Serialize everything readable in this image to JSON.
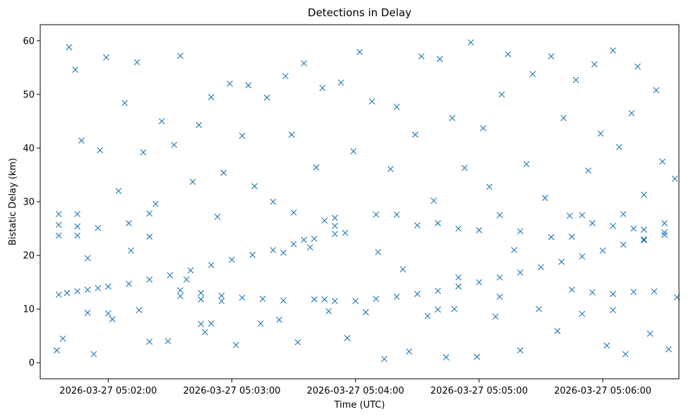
{
  "chart_data": {
    "type": "scatter",
    "title": "Detections in Delay",
    "xlabel": "Time (UTC)",
    "ylabel": "Bistatic Delay (km)",
    "marker": "x",
    "color": "#1f77b4",
    "grid": false,
    "legend": "none",
    "xlim": [
      "2026-03-27 05:01:27",
      "2026-03-27 05:06:37"
    ],
    "ylim": [
      -3,
      63
    ],
    "x_ticks": [
      "2026-03-27 05:02:00",
      "2026-03-27 05:03:00",
      "2026-03-27 05:04:00",
      "2026-03-27 05:05:00",
      "2026-03-27 05:06:00"
    ],
    "y_ticks": [
      0,
      10,
      20,
      30,
      40,
      50,
      60
    ],
    "series": [
      {
        "description": "dense detections forming curved tracks (approx. 1 s sampling)",
        "points": [
          [
            "2026-03-27 05:01:36",
            12.7
          ],
          [
            "2026-03-27 05:01:40",
            13.0
          ],
          [
            "2026-03-27 05:01:45",
            13.3
          ],
          [
            "2026-03-27 05:01:50",
            13.6
          ],
          [
            "2026-03-27 05:01:55",
            13.9
          ],
          [
            "2026-03-27 05:02:00",
            14.2
          ],
          [
            "2026-03-27 05:02:10",
            14.7
          ],
          [
            "2026-03-27 05:02:20",
            15.5
          ],
          [
            "2026-03-27 05:02:30",
            16.3
          ],
          [
            "2026-03-27 05:02:40",
            17.2
          ],
          [
            "2026-03-27 05:02:50",
            18.2
          ],
          [
            "2026-03-27 05:03:00",
            19.2
          ],
          [
            "2026-03-27 05:03:10",
            20.1
          ],
          [
            "2026-03-27 05:03:20",
            21.0
          ],
          [
            "2026-03-27 05:03:30",
            22.1
          ],
          [
            "2026-03-27 05:03:40",
            23.1
          ],
          [
            "2026-03-27 05:03:50",
            24.0
          ],
          [
            "2026-03-27 05:03:55",
            24.2
          ],
          [
            "2026-03-27 05:03:25",
            20.5
          ],
          [
            "2026-03-27 05:03:35",
            22.9
          ],
          [
            "2026-03-27 05:02:35",
            13.5
          ],
          [
            "2026-03-27 05:02:45",
            13.0
          ],
          [
            "2026-03-27 05:02:55",
            12.5
          ],
          [
            "2026-03-27 05:03:05",
            12.1
          ],
          [
            "2026-03-27 05:03:15",
            11.9
          ],
          [
            "2026-03-27 05:03:25",
            11.6
          ],
          [
            "2026-03-27 05:02:35",
            12.4
          ],
          [
            "2026-03-27 05:02:45",
            11.8
          ],
          [
            "2026-03-27 05:02:55",
            11.5
          ],
          [
            "2026-03-27 05:03:40",
            11.8
          ],
          [
            "2026-03-27 05:03:45",
            11.8
          ],
          [
            "2026-03-27 05:03:50",
            11.5
          ],
          [
            "2026-03-27 05:04:00",
            11.5
          ],
          [
            "2026-03-27 05:04:10",
            11.9
          ],
          [
            "2026-03-27 05:04:20",
            12.3
          ],
          [
            "2026-03-27 05:04:30",
            12.8
          ],
          [
            "2026-03-27 05:04:40",
            13.4
          ],
          [
            "2026-03-27 05:04:50",
            14.2
          ],
          [
            "2026-03-27 05:05:00",
            15.0
          ],
          [
            "2026-03-27 05:05:10",
            15.9
          ],
          [
            "2026-03-27 05:05:20",
            16.8
          ],
          [
            "2026-03-27 05:05:30",
            17.8
          ],
          [
            "2026-03-27 05:05:40",
            18.8
          ],
          [
            "2026-03-27 05:05:50",
            19.8
          ],
          [
            "2026-03-27 05:06:00",
            20.9
          ],
          [
            "2026-03-27 05:06:10",
            22.0
          ],
          [
            "2026-03-27 05:06:20",
            22.8
          ],
          [
            "2026-03-27 05:06:30",
            23.8
          ],
          [
            "2026-03-27 05:05:45",
            13.6
          ],
          [
            "2026-03-27 05:05:55",
            13.1
          ],
          [
            "2026-03-27 05:06:05",
            12.8
          ],
          [
            "2026-03-27 05:06:15",
            13.2
          ],
          [
            "2026-03-27 05:06:25",
            13.3
          ],
          [
            "2026-03-27 05:01:36",
            25.7
          ],
          [
            "2026-03-27 05:01:45",
            25.4
          ],
          [
            "2026-03-27 05:01:55",
            25.1
          ],
          [
            "2026-03-27 05:01:36",
            23.7
          ],
          [
            "2026-03-27 05:01:45",
            23.7
          ],
          [
            "2026-03-27 05:01:36",
            27.7
          ],
          [
            "2026-03-27 05:01:45",
            27.7
          ],
          [
            "2026-03-27 05:02:10",
            26.0
          ],
          [
            "2026-03-27 05:02:20",
            27.8
          ],
          [
            "2026-03-27 05:02:20",
            23.5
          ],
          [
            "2026-03-27 05:03:30",
            28.0
          ],
          [
            "2026-03-27 05:03:45",
            26.5
          ],
          [
            "2026-03-27 05:03:50",
            25.5
          ],
          [
            "2026-03-27 05:04:10",
            27.6
          ],
          [
            "2026-03-27 05:04:20",
            27.6
          ],
          [
            "2026-03-27 05:04:30",
            25.6
          ],
          [
            "2026-03-27 05:04:40",
            26.0
          ],
          [
            "2026-03-27 05:04:50",
            25.0
          ],
          [
            "2026-03-27 05:05:00",
            24.7
          ],
          [
            "2026-03-27 05:05:10",
            27.5
          ],
          [
            "2026-03-27 05:05:20",
            24.5
          ],
          [
            "2026-03-27 05:05:35",
            23.4
          ],
          [
            "2026-03-27 05:05:45",
            23.5
          ],
          [
            "2026-03-27 05:05:50",
            27.5
          ],
          [
            "2026-03-27 05:05:55",
            26.0
          ],
          [
            "2026-03-27 05:06:05",
            25.5
          ],
          [
            "2026-03-27 05:06:10",
            27.7
          ],
          [
            "2026-03-27 05:06:15",
            25.0
          ],
          [
            "2026-03-27 05:06:20",
            24.8
          ],
          [
            "2026-03-27 05:06:30",
            24.3
          ],
          [
            "2026-03-27 05:06:20",
            23.0
          ],
          [
            "2026-03-27 05:06:30",
            26.0
          ],
          [
            "2026-03-27 05:01:50",
            9.3
          ],
          [
            "2026-03-27 05:02:00",
            9.2
          ],
          [
            "2026-03-27 05:02:15",
            9.8
          ],
          [
            "2026-03-27 05:02:45",
            7.2
          ],
          [
            "2026-03-27 05:02:50",
            7.3
          ],
          [
            "2026-03-27 05:04:40",
            9.9
          ],
          [
            "2026-03-27 05:04:48",
            10.0
          ],
          [
            "2026-03-27 05:05:10",
            12.3
          ],
          [
            "2026-03-27 05:06:05",
            9.8
          ]
        ]
      },
      {
        "description": "sparse scattered detections",
        "points": [
          [
            "2026-03-27 05:01:35",
            2.3
          ],
          [
            "2026-03-27 05:01:38",
            4.5
          ],
          [
            "2026-03-27 05:01:41",
            58.8
          ],
          [
            "2026-03-27 05:01:44",
            54.6
          ],
          [
            "2026-03-27 05:01:47",
            41.4
          ],
          [
            "2026-03-27 05:01:50",
            19.5
          ],
          [
            "2026-03-27 05:01:53",
            1.6
          ],
          [
            "2026-03-27 05:01:56",
            39.6
          ],
          [
            "2026-03-27 05:01:59",
            56.9
          ],
          [
            "2026-03-27 05:02:02",
            8.1
          ],
          [
            "2026-03-27 05:02:05",
            32.0
          ],
          [
            "2026-03-27 05:02:08",
            48.4
          ],
          [
            "2026-03-27 05:02:11",
            20.9
          ],
          [
            "2026-03-27 05:02:14",
            56.0
          ],
          [
            "2026-03-27 05:02:17",
            39.2
          ],
          [
            "2026-03-27 05:02:20",
            3.9
          ],
          [
            "2026-03-27 05:02:23",
            29.6
          ],
          [
            "2026-03-27 05:02:26",
            45.0
          ],
          [
            "2026-03-27 05:02:29",
            4.0
          ],
          [
            "2026-03-27 05:02:32",
            40.6
          ],
          [
            "2026-03-27 05:02:35",
            57.2
          ],
          [
            "2026-03-27 05:02:38",
            15.5
          ],
          [
            "2026-03-27 05:02:41",
            33.7
          ],
          [
            "2026-03-27 05:02:44",
            44.3
          ],
          [
            "2026-03-27 05:02:47",
            5.7
          ],
          [
            "2026-03-27 05:02:50",
            49.5
          ],
          [
            "2026-03-27 05:02:53",
            27.2
          ],
          [
            "2026-03-27 05:02:56",
            35.4
          ],
          [
            "2026-03-27 05:02:59",
            52.0
          ],
          [
            "2026-03-27 05:03:02",
            3.3
          ],
          [
            "2026-03-27 05:03:05",
            42.3
          ],
          [
            "2026-03-27 05:03:08",
            51.7
          ],
          [
            "2026-03-27 05:03:11",
            32.9
          ],
          [
            "2026-03-27 05:03:14",
            7.3
          ],
          [
            "2026-03-27 05:03:17",
            49.4
          ],
          [
            "2026-03-27 05:03:20",
            30.0
          ],
          [
            "2026-03-27 05:03:23",
            8.0
          ],
          [
            "2026-03-27 05:03:26",
            53.4
          ],
          [
            "2026-03-27 05:03:29",
            42.5
          ],
          [
            "2026-03-27 05:03:32",
            3.8
          ],
          [
            "2026-03-27 05:03:35",
            55.8
          ],
          [
            "2026-03-27 05:03:38",
            21.5
          ],
          [
            "2026-03-27 05:03:41",
            36.4
          ],
          [
            "2026-03-27 05:03:44",
            51.2
          ],
          [
            "2026-03-27 05:03:47",
            9.6
          ],
          [
            "2026-03-27 05:03:50",
            27.0
          ],
          [
            "2026-03-27 05:03:53",
            52.2
          ],
          [
            "2026-03-27 05:03:56",
            4.6
          ],
          [
            "2026-03-27 05:03:59",
            39.4
          ],
          [
            "2026-03-27 05:04:02",
            57.9
          ],
          [
            "2026-03-27 05:04:05",
            9.4
          ],
          [
            "2026-03-27 05:04:08",
            48.7
          ],
          [
            "2026-03-27 05:04:11",
            20.6
          ],
          [
            "2026-03-27 05:04:14",
            0.7
          ],
          [
            "2026-03-27 05:04:17",
            36.1
          ],
          [
            "2026-03-27 05:04:20",
            47.7
          ],
          [
            "2026-03-27 05:04:23",
            17.4
          ],
          [
            "2026-03-27 05:04:26",
            2.1
          ],
          [
            "2026-03-27 05:04:29",
            42.5
          ],
          [
            "2026-03-27 05:04:32",
            57.1
          ],
          [
            "2026-03-27 05:04:35",
            8.7
          ],
          [
            "2026-03-27 05:04:38",
            30.2
          ],
          [
            "2026-03-27 05:04:41",
            56.6
          ],
          [
            "2026-03-27 05:04:44",
            1.0
          ],
          [
            "2026-03-27 05:04:47",
            45.6
          ],
          [
            "2026-03-27 05:04:50",
            15.9
          ],
          [
            "2026-03-27 05:04:53",
            36.3
          ],
          [
            "2026-03-27 05:04:56",
            59.7
          ],
          [
            "2026-03-27 05:04:59",
            1.1
          ],
          [
            "2026-03-27 05:05:02",
            43.7
          ],
          [
            "2026-03-27 05:05:05",
            32.8
          ],
          [
            "2026-03-27 05:05:08",
            8.6
          ],
          [
            "2026-03-27 05:05:11",
            50.0
          ],
          [
            "2026-03-27 05:05:14",
            57.5
          ],
          [
            "2026-03-27 05:05:17",
            21.0
          ],
          [
            "2026-03-27 05:05:20",
            2.3
          ],
          [
            "2026-03-27 05:05:23",
            37.0
          ],
          [
            "2026-03-27 05:05:26",
            53.8
          ],
          [
            "2026-03-27 05:05:29",
            10.0
          ],
          [
            "2026-03-27 05:05:32",
            30.7
          ],
          [
            "2026-03-27 05:05:35",
            57.1
          ],
          [
            "2026-03-27 05:05:38",
            5.9
          ],
          [
            "2026-03-27 05:05:41",
            45.6
          ],
          [
            "2026-03-27 05:05:44",
            27.4
          ],
          [
            "2026-03-27 05:05:47",
            52.7
          ],
          [
            "2026-03-27 05:05:50",
            9.1
          ],
          [
            "2026-03-27 05:05:53",
            35.8
          ],
          [
            "2026-03-27 05:05:56",
            55.6
          ],
          [
            "2026-03-27 05:05:59",
            42.7
          ],
          [
            "2026-03-27 05:06:02",
            3.2
          ],
          [
            "2026-03-27 05:06:05",
            58.2
          ],
          [
            "2026-03-27 05:06:08",
            40.2
          ],
          [
            "2026-03-27 05:06:11",
            1.6
          ],
          [
            "2026-03-27 05:06:14",
            46.5
          ],
          [
            "2026-03-27 05:06:17",
            55.2
          ],
          [
            "2026-03-27 05:06:20",
            31.3
          ],
          [
            "2026-03-27 05:06:23",
            5.4
          ],
          [
            "2026-03-27 05:06:26",
            50.8
          ],
          [
            "2026-03-27 05:06:29",
            37.5
          ],
          [
            "2026-03-27 05:06:32",
            2.5
          ],
          [
            "2026-03-27 05:06:35",
            34.3
          ],
          [
            "2026-03-27 05:06:36",
            12.2
          ]
        ]
      }
    ]
  }
}
